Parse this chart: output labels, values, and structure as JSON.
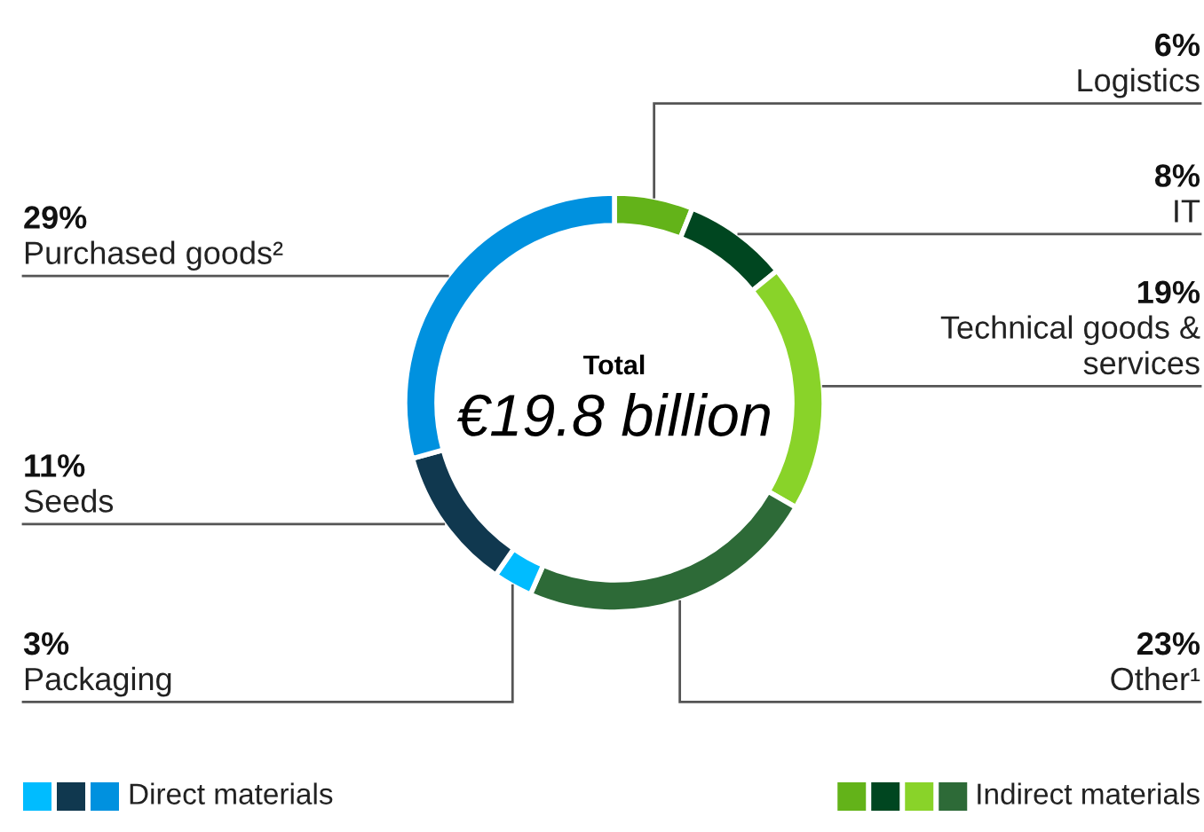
{
  "chart_data": {
    "type": "donut",
    "categories": [
      "Logistics",
      "IT",
      "Technical goods & services",
      "Other¹",
      "Packaging",
      "Seeds",
      "Purchased goods²"
    ],
    "values": [
      6,
      8,
      19,
      23,
      3,
      11,
      29
    ],
    "value_labels": [
      "6%",
      "8%",
      "19%",
      "23%",
      "3%",
      "11%",
      "29%"
    ],
    "colors": [
      "#63b319",
      "#004620",
      "#89d329",
      "#2d6a37",
      "#00bcff",
      "#10384f",
      "#0091df"
    ],
    "annotations": [
      "Total",
      "€19.8 billion",
      "Direct materials",
      "Indirect materials"
    ]
  }
}
